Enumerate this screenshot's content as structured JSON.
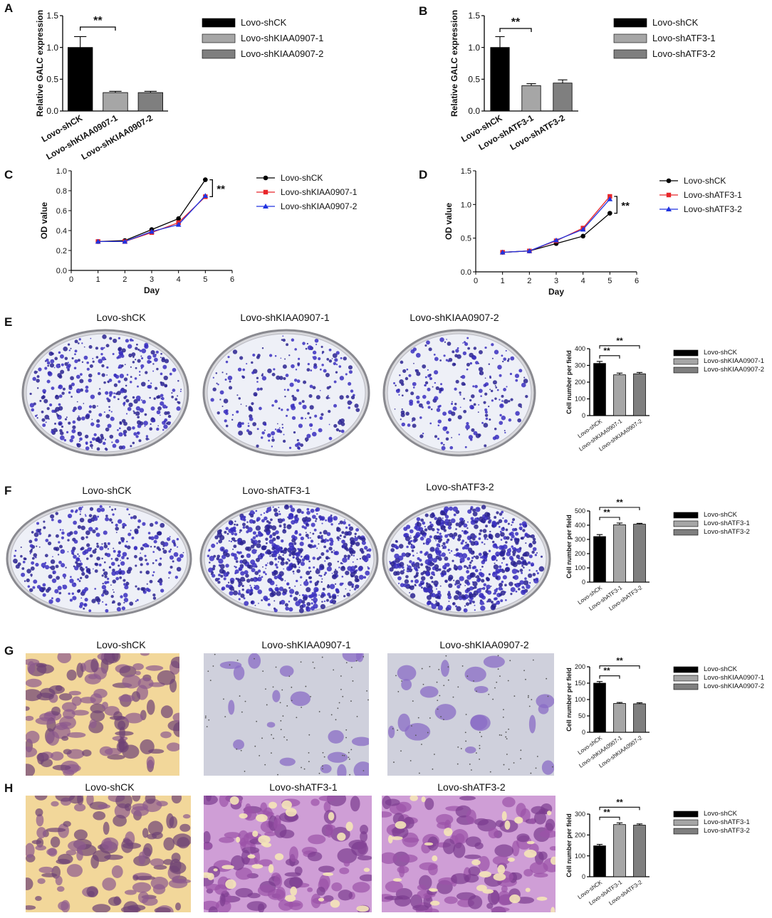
{
  "panels": {
    "A": {
      "letter": "A",
      "chart_data": {
        "type": "bar",
        "ylabel": "Relative GALC expression",
        "ylim": [
          0,
          1.5
        ],
        "yticks": [
          "0.0",
          "0.5",
          "1.0",
          "1.5"
        ],
        "categories": [
          "Lovo-shCK",
          "Lovo-shKIAA0907-1",
          "Lovo-shKIAA0907-2"
        ],
        "values": [
          1.0,
          0.29,
          0.29
        ],
        "errors": [
          0.17,
          0.02,
          0.02
        ],
        "colors": [
          "#000000",
          "#a6a6a6",
          "#7f7f7f"
        ],
        "legend": [
          "Lovo-shCK",
          "Lovo-shKIAA0907-1",
          "Lovo-shKIAA0907-2"
        ],
        "significance": "**"
      }
    },
    "B": {
      "letter": "B",
      "chart_data": {
        "type": "bar",
        "ylabel": "Relative GALC expression",
        "ylim": [
          0,
          1.5
        ],
        "yticks": [
          "0.0",
          "0.5",
          "1.0",
          "1.5"
        ],
        "categories": [
          "Lovo-shCK",
          "Lovo-shATF3-1",
          "Lovo-shATF3-2"
        ],
        "values": [
          1.0,
          0.4,
          0.44
        ],
        "errors": [
          0.17,
          0.03,
          0.05
        ],
        "colors": [
          "#000000",
          "#a6a6a6",
          "#7f7f7f"
        ],
        "legend": [
          "Lovo-shCK",
          "Lovo-shATF3-1",
          "Lovo-shATF3-2"
        ],
        "significance": "**"
      }
    },
    "C": {
      "letter": "C",
      "chart_data": {
        "type": "line",
        "xlabel": "Day",
        "ylabel": "OD value",
        "xlim": [
          0,
          6
        ],
        "ylim": [
          0,
          1.0
        ],
        "xticks": [
          "0",
          "1",
          "2",
          "3",
          "4",
          "5",
          "6"
        ],
        "yticks": [
          "0.0",
          "0.2",
          "0.4",
          "0.6",
          "0.8",
          "1.0"
        ],
        "x": [
          1,
          2,
          3,
          4,
          5
        ],
        "series": [
          {
            "name": "Lovo-shCK",
            "values": [
              0.29,
              0.3,
              0.41,
              0.52,
              0.91
            ],
            "color": "#000000",
            "marker": "circle"
          },
          {
            "name": "Lovo-shKIAA0907-1",
            "values": [
              0.29,
              0.29,
              0.38,
              0.48,
              0.74
            ],
            "color": "#e8262a",
            "marker": "square"
          },
          {
            "name": "Lovo-shKIAA0907-2",
            "values": [
              0.29,
              0.29,
              0.39,
              0.46,
              0.75
            ],
            "color": "#2033e0",
            "marker": "triangle"
          }
        ],
        "significance": "**"
      }
    },
    "D": {
      "letter": "D",
      "chart_data": {
        "type": "line",
        "xlabel": "Day",
        "ylabel": "OD value",
        "xlim": [
          0,
          6
        ],
        "ylim": [
          0,
          1.5
        ],
        "xticks": [
          "0",
          "1",
          "2",
          "3",
          "4",
          "5",
          "6"
        ],
        "yticks": [
          "0.0",
          "0.5",
          "1.0",
          "1.5"
        ],
        "x": [
          1,
          2,
          3,
          4,
          5
        ],
        "series": [
          {
            "name": "Lovo-shCK",
            "values": [
              0.29,
              0.31,
              0.42,
              0.53,
              0.87
            ],
            "color": "#000000",
            "marker": "circle"
          },
          {
            "name": "Lovo-shATF3-1",
            "values": [
              0.29,
              0.31,
              0.46,
              0.65,
              1.12
            ],
            "color": "#e8262a",
            "marker": "square"
          },
          {
            "name": "Lovo-shATF3-2",
            "values": [
              0.29,
              0.31,
              0.47,
              0.63,
              1.08
            ],
            "color": "#2033e0",
            "marker": "triangle"
          }
        ],
        "significance": "**"
      }
    },
    "E": {
      "letter": "E",
      "images": [
        "Lovo-shCK",
        "Lovo-shKIAA0907-1",
        "Lovo-shKIAA0907-2"
      ],
      "chart_data": {
        "type": "bar",
        "ylabel": "Cell number per field",
        "ylim": [
          0,
          400
        ],
        "yticks": [
          "0",
          "100",
          "200",
          "300",
          "400"
        ],
        "categories": [
          "Lovo-shCK",
          "Lovo-shKIAA0907-1",
          "Lovo-shKIAA0907-2"
        ],
        "values": [
          312,
          244,
          250
        ],
        "errors": [
          12,
          10,
          8
        ],
        "colors": [
          "#000000",
          "#a6a6a6",
          "#7f7f7f"
        ],
        "legend": [
          "Lovo-shCK",
          "Lovo-shKIAA0907-1",
          "Lovo-shKIAA0907-2"
        ],
        "significance": [
          "**",
          "**"
        ]
      }
    },
    "F": {
      "letter": "F",
      "images": [
        "Lovo-shCK",
        "Lovo-shATF3-1",
        "Lovo-shATF3-2"
      ],
      "chart_data": {
        "type": "bar",
        "ylabel": "Cell number per field",
        "ylim": [
          0,
          500
        ],
        "yticks": [
          "0",
          "100",
          "200",
          "300",
          "400",
          "500"
        ],
        "categories": [
          "Lovo-shCK",
          "Lovo-shATF3-1",
          "Lovo-shATF3-2"
        ],
        "values": [
          320,
          403,
          407
        ],
        "errors": [
          14,
          12,
          6
        ],
        "colors": [
          "#000000",
          "#a6a6a6",
          "#7f7f7f"
        ],
        "legend": [
          "Lovo-shCK",
          "Lovo-shATF3-1",
          "Lovo-shATF3-2"
        ],
        "significance": [
          "**",
          "**"
        ]
      }
    },
    "G": {
      "letter": "G",
      "images": [
        "Lovo-shCK",
        "Lovo-shKIAA0907-1",
        "Lovo-shKIAA0907-2"
      ],
      "chart_data": {
        "type": "bar",
        "ylabel": "Cell number per field",
        "ylim": [
          0,
          200
        ],
        "yticks": [
          "0",
          "50",
          "100",
          "150",
          "200"
        ],
        "categories": [
          "Lovo-shCK",
          "Lovo-shKIAA0907-1",
          "Lovo-shKIAA0907-2"
        ],
        "values": [
          150,
          88,
          87
        ],
        "errors": [
          5,
          3,
          3
        ],
        "colors": [
          "#000000",
          "#a6a6a6",
          "#7f7f7f"
        ],
        "legend": [
          "Lovo-shCK",
          "Lovo-shKIAA0907-1",
          "Lovo-shKIAA0907-2"
        ],
        "significance": [
          "**",
          "**"
        ]
      }
    },
    "H": {
      "letter": "H",
      "images": [
        "Lovo-shCK",
        "Lovo-shATF3-1",
        "Lovo-shATF3-2"
      ],
      "chart_data": {
        "type": "bar",
        "ylabel": "Cell number per field",
        "ylim": [
          0,
          300
        ],
        "yticks": [
          "0",
          "100",
          "200",
          "300"
        ],
        "categories": [
          "Lovo-shCK",
          "Lovo-shATF3-1",
          "Lovo-shATF3-2"
        ],
        "values": [
          148,
          250,
          247
        ],
        "errors": [
          7,
          8,
          6
        ],
        "colors": [
          "#000000",
          "#a6a6a6",
          "#7f7f7f"
        ],
        "legend": [
          "Lovo-shCK",
          "Lovo-shATF3-1",
          "Lovo-shATF3-2"
        ],
        "significance": [
          "**",
          "**"
        ]
      }
    }
  }
}
